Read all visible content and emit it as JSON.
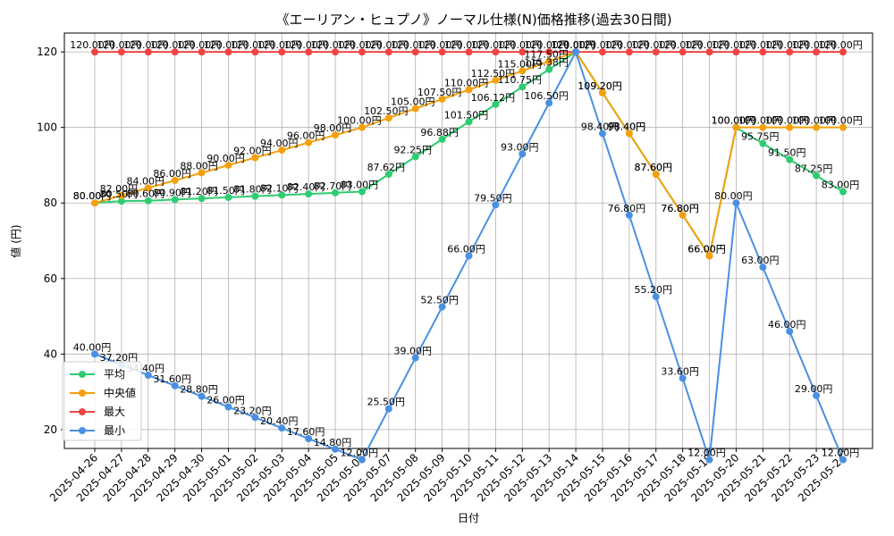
{
  "chart_data": {
    "type": "line",
    "title": "《エーリアン・ヒュプノ》ノーマル仕様(N)価格推移(過去30日間)",
    "xlabel": "日付",
    "ylabel": "値 (円)",
    "ylim": [
      15,
      125
    ],
    "yticks": [
      20,
      40,
      60,
      80,
      100,
      120
    ],
    "grid": true,
    "legend_position": "lower-left",
    "label_suffix": "円",
    "x": [
      "2025-04-26",
      "2025-04-27",
      "2025-04-28",
      "2025-04-29",
      "2025-04-30",
      "2025-05-01",
      "2025-05-02",
      "2025-05-03",
      "2025-05-04",
      "2025-05-05",
      "2025-05-06",
      "2025-05-07",
      "2025-05-08",
      "2025-05-09",
      "2025-05-10",
      "2025-05-11",
      "2025-05-12",
      "2025-05-13",
      "2025-05-14",
      "2025-05-15",
      "2025-05-16",
      "2025-05-17",
      "2025-05-18",
      "2025-05-19",
      "2025-05-20",
      "2025-05-21",
      "2025-05-22",
      "2025-05-23",
      "2025-05-24"
    ],
    "series": [
      {
        "name": "平均",
        "color": "#2ecc71",
        "values": [
          80.0,
          80.5,
          80.6,
          80.9,
          81.2,
          81.5,
          81.8,
          82.1,
          82.4,
          82.7,
          83.0,
          87.62,
          92.25,
          96.88,
          101.5,
          106.12,
          110.75,
          115.38,
          120.0,
          109.2,
          98.4,
          87.6,
          76.8,
          66.0,
          100.0,
          95.75,
          91.5,
          87.25,
          83.0
        ]
      },
      {
        "name": "中央値",
        "color": "#f5a00a",
        "values": [
          80.0,
          82.0,
          84.0,
          86.0,
          88.0,
          90.0,
          92.0,
          94.0,
          96.0,
          98.0,
          100.0,
          102.5,
          105.0,
          107.5,
          110.0,
          112.5,
          115.0,
          117.5,
          120.0,
          109.2,
          98.4,
          87.6,
          76.8,
          66.0,
          100.0,
          100.0,
          100.0,
          100.0,
          100.0
        ]
      },
      {
        "name": "最大",
        "color": "#ef4444",
        "values": [
          120.0,
          120.0,
          120.0,
          120.0,
          120.0,
          120.0,
          120.0,
          120.0,
          120.0,
          120.0,
          120.0,
          120.0,
          120.0,
          120.0,
          120.0,
          120.0,
          120.0,
          120.0,
          120.0,
          120.0,
          120.0,
          120.0,
          120.0,
          120.0,
          120.0,
          120.0,
          120.0,
          120.0,
          120.0
        ]
      },
      {
        "name": "最小",
        "color": "#4a90e2",
        "values": [
          40.0,
          37.2,
          34.4,
          31.6,
          28.8,
          26.0,
          23.2,
          20.4,
          17.6,
          14.8,
          12.0,
          25.5,
          39.0,
          52.5,
          66.0,
          79.5,
          93.0,
          106.5,
          120.0,
          98.4,
          76.8,
          55.2,
          33.6,
          12.0,
          80.0,
          63.0,
          46.0,
          29.0,
          12.0
        ]
      }
    ]
  }
}
